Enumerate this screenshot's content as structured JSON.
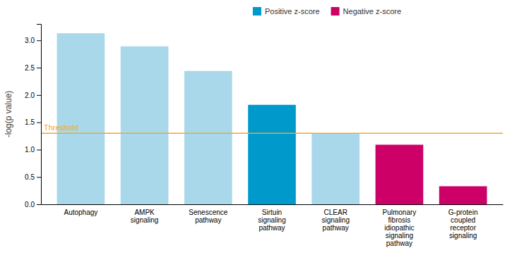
{
  "chart_data": {
    "type": "bar",
    "categories": [
      "Autophagy",
      "AMPK\nsignaling",
      "Senescence\npathway",
      "Sirtuin\nsignaling\npathway",
      "CLEAR\nsignaling\npathway",
      "Pulmonary\nfibrosis\nidiopathic\nsignaling\npathway",
      "G-protein\ncoupled\nreceptor\nsignaling"
    ],
    "values": [
      3.13,
      2.89,
      2.44,
      1.82,
      1.29,
      1.09,
      0.33
    ],
    "colors": [
      "#a8d8ea",
      "#a8d8ea",
      "#a8d8ea",
      "#0099cc",
      "#a8d8ea",
      "#cc0066",
      "#cc0066"
    ],
    "ylabel": "-log(p value)",
    "ylim": [
      0,
      3.3
    ],
    "yticks": [
      {
        "value": 0,
        "label": "0.0"
      },
      0.5,
      {
        "value": 1,
        "label": "1.0"
      },
      1.5,
      {
        "value": 2,
        "label": "2.0"
      },
      2.5,
      {
        "value": 3,
        "label": "3.0"
      }
    ],
    "threshold": {
      "value": 1.3,
      "label": "Threshold",
      "color": "#f5a623"
    },
    "legend_entries": [
      {
        "name": "Positive z-score",
        "color": "#0099cc"
      },
      {
        "name": "Negative z-score",
        "color": "#cc0066"
      }
    ],
    "grid": false
  }
}
